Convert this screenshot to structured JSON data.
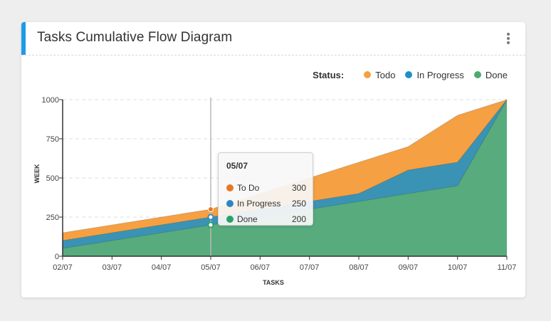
{
  "card": {
    "title": "Tasks Cumulative Flow Diagram"
  },
  "legend": {
    "title": "Status:",
    "items": [
      {
        "label": "Todo",
        "color": "#f5a042"
      },
      {
        "label": "In Progress",
        "color": "#1e90c8"
      },
      {
        "label": "Done",
        "color": "#4caa6f"
      }
    ]
  },
  "tooltip": {
    "title": "05/07",
    "rows": [
      {
        "label": "To Do",
        "value": "300",
        "color": "#e87722"
      },
      {
        "label": "In Progress",
        "value": "250",
        "color": "#2e86c1"
      },
      {
        "label": "Done",
        "value": "200",
        "color": "#27a263"
      }
    ]
  },
  "chart_data": {
    "type": "area",
    "stacked": false,
    "x": [
      "02/07",
      "03/07",
      "04/07",
      "05/07",
      "06/07",
      "07/07",
      "08/07",
      "09/07",
      "10/07",
      "11/07"
    ],
    "series": [
      {
        "name": "Todo",
        "values": [
          150,
          200,
          250,
          300,
          400,
          500,
          600,
          700,
          900,
          1000
        ],
        "color": "#f5a042"
      },
      {
        "name": "In Progress",
        "values": [
          100,
          150,
          200,
          250,
          300,
          350,
          400,
          550,
          600,
          1000
        ],
        "color": "#3a93b5"
      },
      {
        "name": "Done",
        "values": [
          50,
          100,
          150,
          200,
          250,
          300,
          350,
          400,
          450,
          1000
        ],
        "color": "#57ab7d"
      }
    ],
    "xlabel": "TASKS",
    "ylabel": "WEEK",
    "yticks": [
      0,
      250,
      500,
      750,
      1000
    ],
    "ylim": [
      0,
      1000
    ],
    "grid": true,
    "hover_index": 3
  }
}
